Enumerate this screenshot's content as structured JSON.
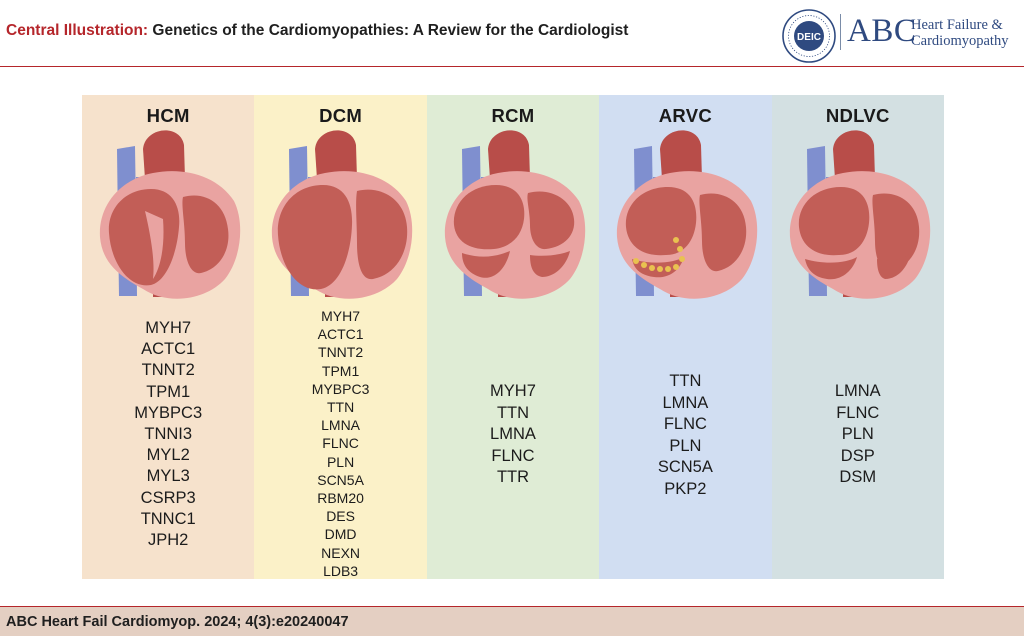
{
  "header": {
    "title_lead": "Central Illustration:",
    "title_text": "Genetics of the Cardiomyopathies: A Review for the Cardiologist"
  },
  "logo": {
    "seal_text": "DEIC",
    "abc": "ABC",
    "subtitle_line1": "Heart Failure &",
    "subtitle_line2": "Cardiomyopathy"
  },
  "colors": {
    "accent": "#b5262b",
    "hcm_bg": "#f6e2cc",
    "dcm_bg": "#fbf1c8",
    "rcm_bg": "#dfecd5",
    "arvc_bg": "#d1def2",
    "ndlvc_bg": "#d3e0e2",
    "footer_bg": "#e4cfc2",
    "logo_blue": "#2f4a80"
  },
  "panels": [
    {
      "name": "HCM",
      "heart_icon": "heart-hypertrophic-icon",
      "genes": [
        "MYH7",
        "ACTC1",
        "TNNT2",
        "TPM1",
        "MYBPC3",
        "TNNI3",
        "MYL2",
        "MYL3",
        "CSRP3",
        "TNNC1",
        "JPH2"
      ]
    },
    {
      "name": "DCM",
      "heart_icon": "heart-dilated-icon",
      "genes": [
        "MYH7",
        "ACTC1",
        "TNNT2",
        "TPM1",
        "MYBPC3",
        "TTN",
        "LMNA",
        "FLNC",
        "PLN",
        "SCN5A",
        "RBM20",
        "DES",
        "DMD",
        "NEXN",
        "LDB3"
      ]
    },
    {
      "name": "RCM",
      "heart_icon": "heart-restrictive-icon",
      "genes": [
        "MYH7",
        "TTN",
        "LMNA",
        "FLNC",
        "TTR"
      ]
    },
    {
      "name": "ARVC",
      "heart_icon": "heart-arrhythmogenic-icon",
      "genes": [
        "TTN",
        "LMNA",
        "FLNC",
        "PLN",
        "SCN5A",
        "PKP2"
      ]
    },
    {
      "name": "NDLVC",
      "heart_icon": "heart-nondilated-icon",
      "genes": [
        "LMNA",
        "FLNC",
        "PLN",
        "DSP",
        "DSM"
      ]
    }
  ],
  "footer": {
    "citation": "ABC Heart Fail Cardiomyop. 2024; 4(3):e20240047"
  }
}
